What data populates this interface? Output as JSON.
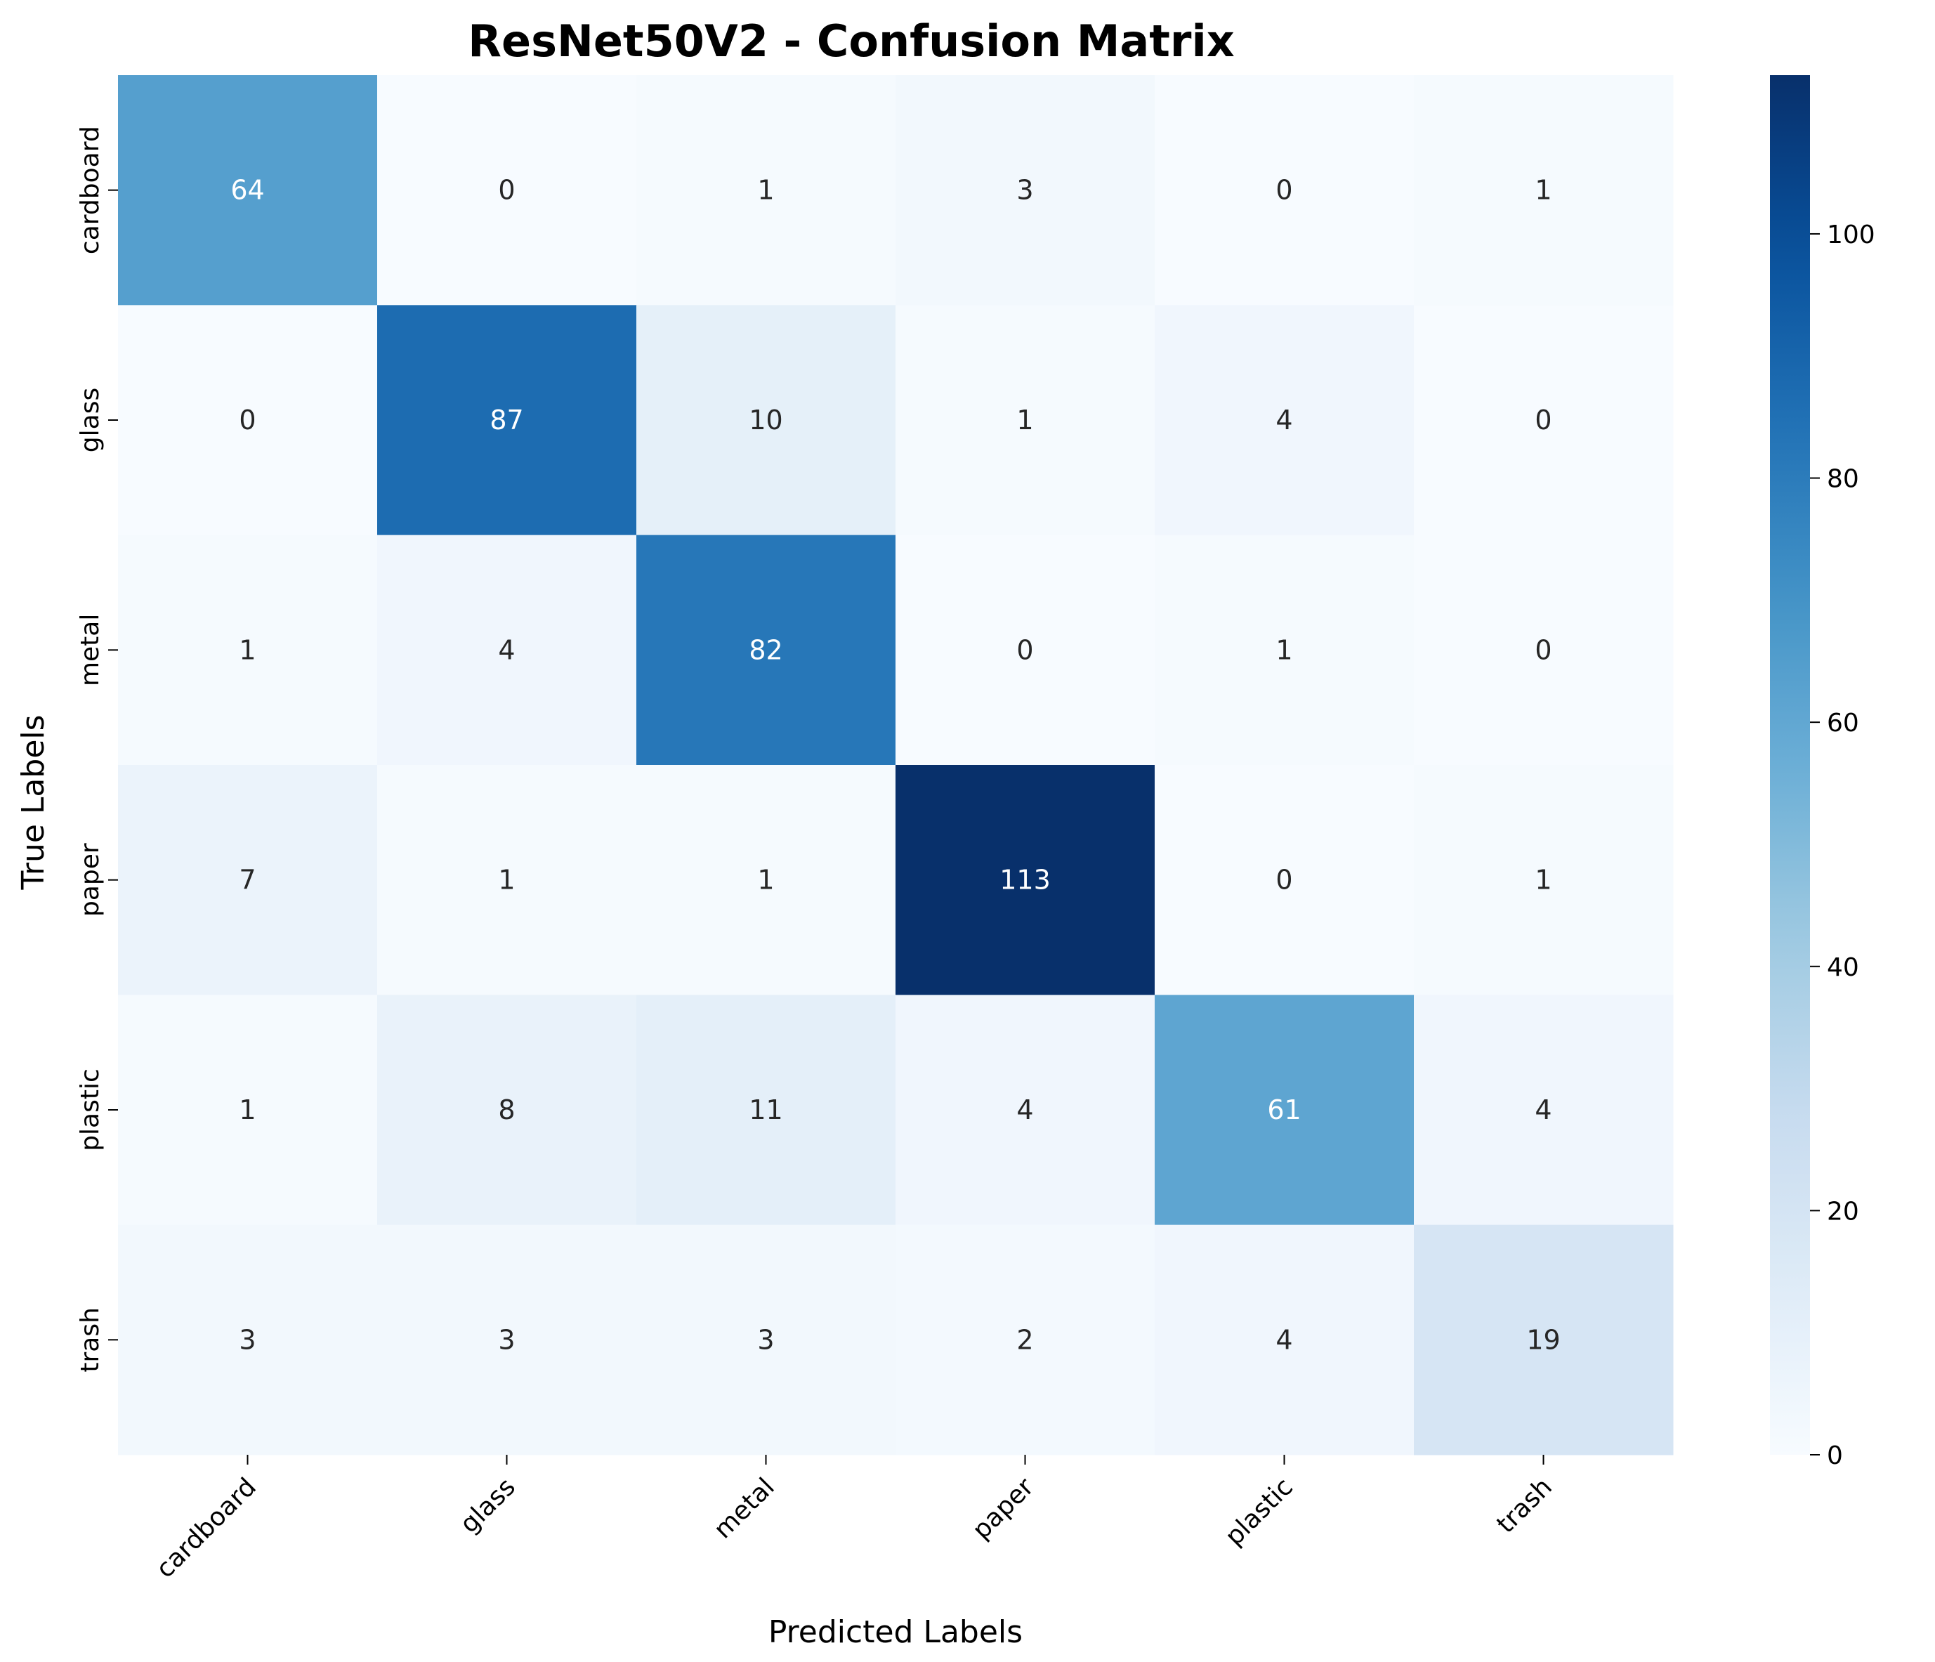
{
  "chart_data": {
    "type": "heatmap",
    "title": "ResNet50V2 - Confusion Matrix",
    "xlabel": "Predicted Labels",
    "ylabel": "True Labels",
    "x_categories": [
      "cardboard",
      "glass",
      "metal",
      "paper",
      "plastic",
      "trash"
    ],
    "y_categories": [
      "cardboard",
      "glass",
      "metal",
      "paper",
      "plastic",
      "trash"
    ],
    "values": [
      [
        64,
        0,
        1,
        3,
        0,
        1
      ],
      [
        0,
        87,
        10,
        1,
        4,
        0
      ],
      [
        1,
        4,
        82,
        0,
        1,
        0
      ],
      [
        7,
        1,
        1,
        113,
        0,
        1
      ],
      [
        1,
        8,
        11,
        4,
        61,
        4
      ],
      [
        3,
        3,
        3,
        2,
        4,
        19
      ]
    ],
    "colorbar": {
      "min": 0,
      "max": 113,
      "ticks": [
        0,
        20,
        40,
        60,
        80,
        100
      ]
    },
    "colormap": "Blues",
    "colors": {
      "low": "#f7fbff",
      "high": "#08306b",
      "text_light": "#ffffff",
      "text_dark": "#262626"
    }
  }
}
